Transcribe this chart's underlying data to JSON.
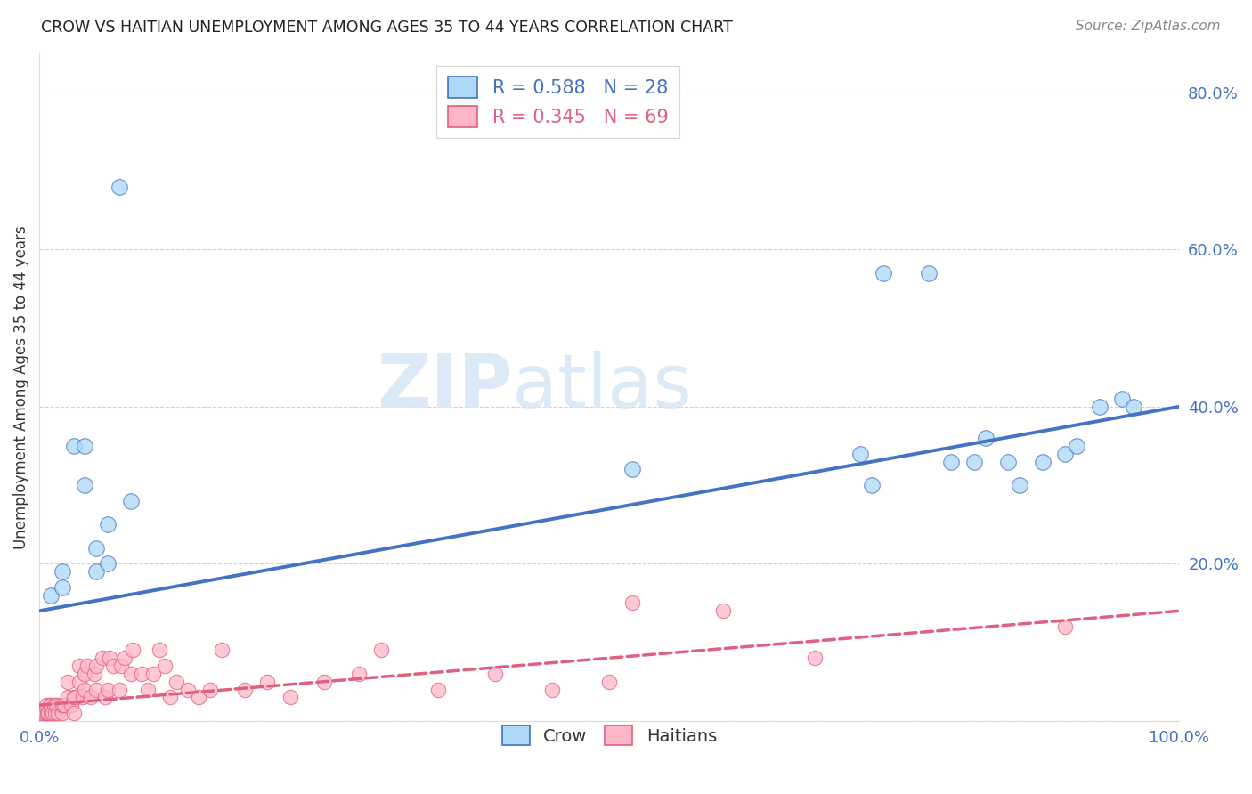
{
  "title": "CROW VS HAITIAN UNEMPLOYMENT AMONG AGES 35 TO 44 YEARS CORRELATION CHART",
  "source": "Source: ZipAtlas.com",
  "ylabel": "Unemployment Among Ages 35 to 44 years",
  "xlim": [
    0.0,
    1.0
  ],
  "ylim": [
    0.0,
    0.85
  ],
  "crow_R": 0.588,
  "crow_N": 28,
  "haitian_R": 0.345,
  "haitian_N": 69,
  "crow_color": "#ADD8F7",
  "crow_line_color": "#4472C4",
  "haitian_color": "#FFB6C8",
  "haitian_line_color": "#E06080",
  "crow_x": [
    0.01,
    0.02,
    0.02,
    0.03,
    0.04,
    0.04,
    0.05,
    0.05,
    0.06,
    0.06,
    0.07,
    0.08,
    0.52,
    0.72,
    0.73,
    0.74,
    0.78,
    0.8,
    0.82,
    0.83,
    0.85,
    0.86,
    0.88,
    0.9,
    0.91,
    0.93,
    0.95,
    0.96
  ],
  "crow_y": [
    0.16,
    0.17,
    0.19,
    0.35,
    0.35,
    0.3,
    0.19,
    0.22,
    0.2,
    0.25,
    0.68,
    0.28,
    0.32,
    0.34,
    0.3,
    0.57,
    0.57,
    0.33,
    0.33,
    0.36,
    0.33,
    0.3,
    0.33,
    0.34,
    0.35,
    0.4,
    0.41,
    0.4
  ],
  "haitian_x": [
    0.0,
    0.003,
    0.005,
    0.006,
    0.007,
    0.008,
    0.009,
    0.01,
    0.01,
    0.012,
    0.013,
    0.014,
    0.015,
    0.016,
    0.018,
    0.02,
    0.02,
    0.022,
    0.025,
    0.025,
    0.028,
    0.03,
    0.03,
    0.032,
    0.035,
    0.035,
    0.038,
    0.04,
    0.04,
    0.042,
    0.045,
    0.048,
    0.05,
    0.05,
    0.055,
    0.058,
    0.06,
    0.062,
    0.065,
    0.07,
    0.072,
    0.075,
    0.08,
    0.082,
    0.09,
    0.095,
    0.1,
    0.105,
    0.11,
    0.115,
    0.12,
    0.13,
    0.14,
    0.15,
    0.16,
    0.18,
    0.2,
    0.22,
    0.25,
    0.28,
    0.3,
    0.35,
    0.4,
    0.45,
    0.5,
    0.52,
    0.6,
    0.68,
    0.9
  ],
  "haitian_y": [
    0.01,
    0.01,
    0.01,
    0.02,
    0.01,
    0.01,
    0.02,
    0.01,
    0.02,
    0.01,
    0.02,
    0.01,
    0.02,
    0.01,
    0.02,
    0.01,
    0.02,
    0.02,
    0.03,
    0.05,
    0.02,
    0.01,
    0.03,
    0.03,
    0.05,
    0.07,
    0.03,
    0.04,
    0.06,
    0.07,
    0.03,
    0.06,
    0.04,
    0.07,
    0.08,
    0.03,
    0.04,
    0.08,
    0.07,
    0.04,
    0.07,
    0.08,
    0.06,
    0.09,
    0.06,
    0.04,
    0.06,
    0.09,
    0.07,
    0.03,
    0.05,
    0.04,
    0.03,
    0.04,
    0.09,
    0.04,
    0.05,
    0.03,
    0.05,
    0.06,
    0.09,
    0.04,
    0.06,
    0.04,
    0.05,
    0.15,
    0.14,
    0.08,
    0.12
  ],
  "watermark_zip": "ZIP",
  "watermark_atlas": "atlas",
  "background_color": "#FFFFFF",
  "grid_color": "#CCCCCC",
  "tick_label_color": "#4472C4"
}
